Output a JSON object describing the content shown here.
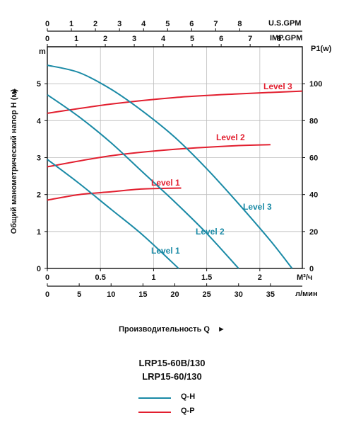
{
  "chart_data": {
    "type": "line",
    "y_left": {
      "label": "Общий манометрический напор H (м)",
      "unit": "m",
      "ticks": [
        0,
        1,
        2,
        3,
        4,
        5
      ],
      "range": [
        0,
        6
      ]
    },
    "y_right": {
      "label": "P1(w)",
      "ticks": [
        0,
        20,
        40,
        60,
        80,
        100
      ],
      "range": [
        0,
        120
      ]
    },
    "x_top1": {
      "label": "U.S.GPM",
      "ticks": [
        0,
        1,
        2,
        3,
        4,
        5,
        6,
        7,
        8
      ],
      "range": [
        0,
        10.6
      ]
    },
    "x_top2": {
      "label": "IMP.GPM",
      "ticks": [
        0,
        1,
        2,
        3,
        4,
        5,
        6,
        7,
        8
      ],
      "range": [
        0,
        8.8
      ]
    },
    "x_m3h": {
      "label": "M³/ч",
      "ticks": [
        "0",
        "0.5",
        "1",
        "1.5",
        "2"
      ],
      "values": [
        0,
        0.5,
        1,
        1.5,
        2
      ],
      "range": [
        0,
        2.4
      ]
    },
    "x_lmin": {
      "label": "л/мин",
      "ticks": [
        0,
        5,
        10,
        15,
        20,
        25,
        30,
        35
      ],
      "range": [
        0,
        40
      ]
    },
    "xlabel": "Производительность Q",
    "qh_series": [
      {
        "name": "Level 3",
        "axis": "left",
        "points": [
          [
            0,
            5.5
          ],
          [
            5,
            5.3
          ],
          [
            10,
            4.85
          ],
          [
            15,
            4.25
          ],
          [
            20,
            3.55
          ],
          [
            25,
            2.7
          ],
          [
            30,
            1.75
          ],
          [
            35,
            0.75
          ],
          [
            38.4,
            0
          ]
        ]
      },
      {
        "name": "Level 2",
        "axis": "left",
        "points": [
          [
            0,
            4.7
          ],
          [
            5,
            4.1
          ],
          [
            10,
            3.4
          ],
          [
            15,
            2.6
          ],
          [
            20,
            1.8
          ],
          [
            25,
            0.95
          ],
          [
            30,
            0
          ]
        ]
      },
      {
        "name": "Level 1",
        "axis": "left",
        "points": [
          [
            0,
            2.95
          ],
          [
            5,
            2.3
          ],
          [
            10,
            1.6
          ],
          [
            15,
            0.9
          ],
          [
            20.6,
            0
          ]
        ]
      }
    ],
    "qp_series": [
      {
        "name": "Level 3",
        "axis": "right",
        "points": [
          [
            0,
            84
          ],
          [
            10,
            89
          ],
          [
            20,
            92.5
          ],
          [
            30,
            94.5
          ],
          [
            40,
            96
          ]
        ]
      },
      {
        "name": "Level 2",
        "axis": "right",
        "points": [
          [
            0,
            55
          ],
          [
            10,
            61
          ],
          [
            20,
            64.5
          ],
          [
            30,
            66.5
          ],
          [
            35,
            67
          ]
        ]
      },
      {
        "name": "Level 1",
        "axis": "right",
        "points": [
          [
            0,
            37
          ],
          [
            5,
            40
          ],
          [
            10,
            41.5
          ],
          [
            15,
            43
          ],
          [
            21,
            43.5
          ]
        ]
      }
    ],
    "colors": {
      "qh": "#1a8aa6",
      "qp": "#e21f2f",
      "grid": "#bdbdbd",
      "axis": "#111111"
    }
  },
  "labels": {
    "us_gpm": "U.S.GPM",
    "imp_gpm": "IMP.GPM",
    "p1": "P1(w)",
    "m": "m",
    "m3h": "M³/ч",
    "lmin": "л/мин",
    "ylabel": "Общий манометрический напор H (м)",
    "xlabel": "Производительность Q",
    "x_arrow": "►",
    "y_arrow": "►"
  },
  "series_labels": {
    "qh": [
      "Level 3",
      "Level 2",
      "Level 1"
    ],
    "qp": [
      "Level 3",
      "Level 2",
      "Level 1"
    ]
  },
  "models": [
    "LRP15-60B/130",
    "LRP15-60/130"
  ],
  "legend": [
    {
      "label": "Q-H",
      "color": "#1a8aa6"
    },
    {
      "label": "Q-P",
      "color": "#e21f2f"
    }
  ]
}
